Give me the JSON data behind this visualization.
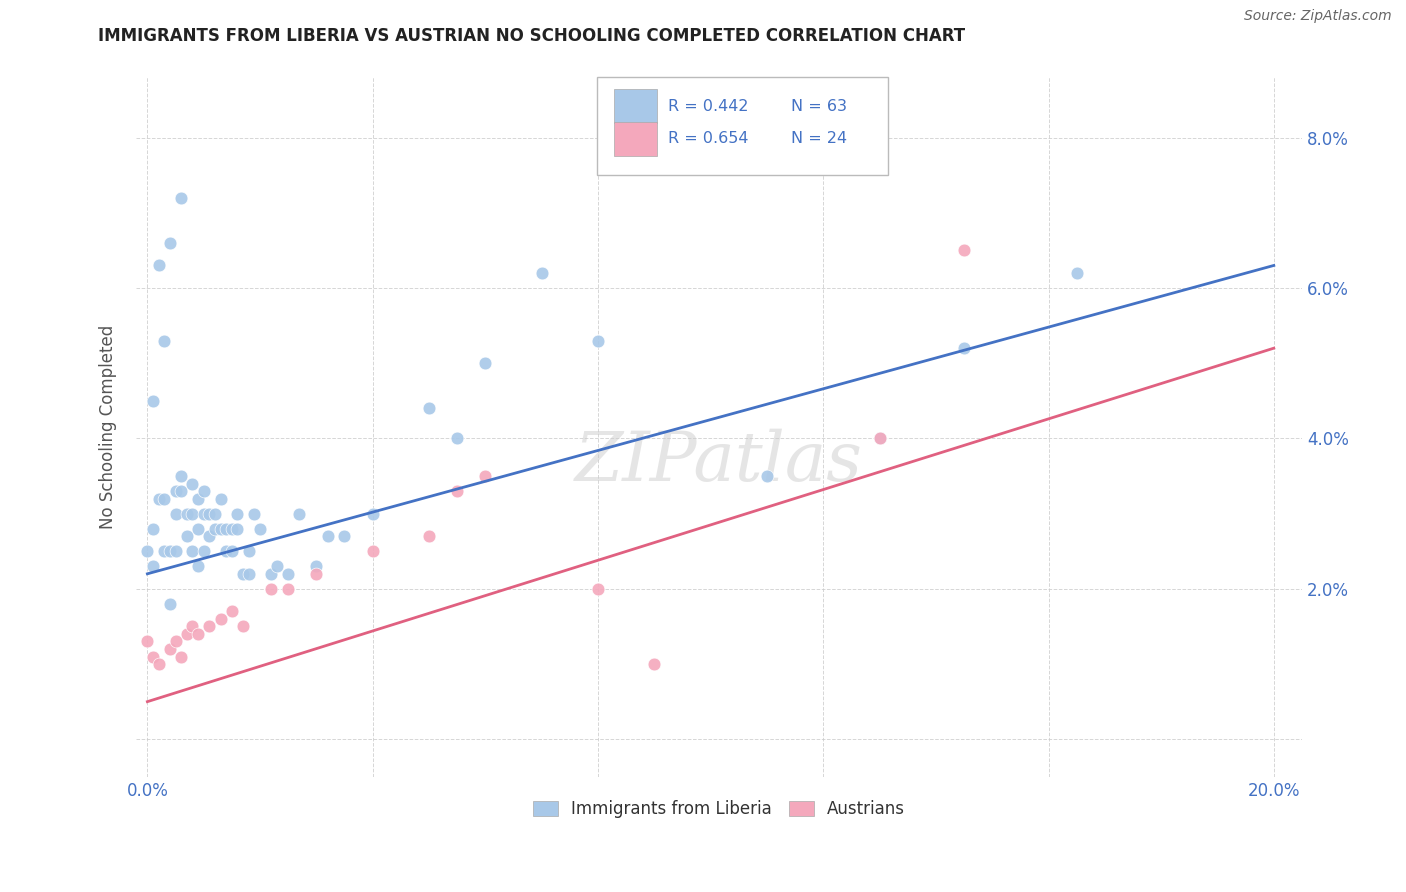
{
  "title": "IMMIGRANTS FROM LIBERIA VS AUSTRIAN NO SCHOOLING COMPLETED CORRELATION CHART",
  "source": "Source: ZipAtlas.com",
  "ylabel": "No Schooling Completed",
  "xlim": [
    -0.002,
    0.205
  ],
  "ylim": [
    -0.005,
    0.088
  ],
  "xtick_vals": [
    0.0,
    0.04,
    0.08,
    0.12,
    0.16,
    0.2
  ],
  "xtick_labels": [
    "0.0%",
    "",
    "",
    "",
    "",
    "20.0%"
  ],
  "ytick_vals": [
    0.0,
    0.02,
    0.04,
    0.06,
    0.08
  ],
  "ytick_labels_right": [
    "",
    "2.0%",
    "4.0%",
    "6.0%",
    "8.0%"
  ],
  "blue_R": "R = 0.442",
  "blue_N": "N = 63",
  "pink_R": "R = 0.654",
  "pink_N": "N = 24",
  "blue_color": "#a8c8e8",
  "pink_color": "#f4a8bc",
  "blue_line_color": "#4472c4",
  "pink_line_color": "#e06080",
  "text_color": "#4472c4",
  "watermark": "ZIPatlas",
  "legend_label_blue": "Immigrants from Liberia",
  "legend_label_pink": "Austrians",
  "blue_line_x0": 0.0,
  "blue_line_x1": 0.2,
  "blue_line_y0": 0.022,
  "blue_line_y1": 0.063,
  "pink_line_x0": 0.0,
  "pink_line_x1": 0.2,
  "pink_line_y0": 0.005,
  "pink_line_y1": 0.052,
  "blue_x": [
    0.0,
    0.001,
    0.001,
    0.002,
    0.003,
    0.003,
    0.004,
    0.004,
    0.005,
    0.005,
    0.005,
    0.006,
    0.006,
    0.007,
    0.007,
    0.008,
    0.008,
    0.008,
    0.009,
    0.009,
    0.009,
    0.01,
    0.01,
    0.01,
    0.011,
    0.011,
    0.012,
    0.012,
    0.013,
    0.013,
    0.014,
    0.014,
    0.015,
    0.015,
    0.016,
    0.016,
    0.017,
    0.018,
    0.018,
    0.019,
    0.02,
    0.022,
    0.023,
    0.025,
    0.027,
    0.03,
    0.032,
    0.035,
    0.04,
    0.05,
    0.055,
    0.06,
    0.07,
    0.08,
    0.11,
    0.13,
    0.145,
    0.165,
    0.001,
    0.002,
    0.003,
    0.004,
    0.006
  ],
  "blue_y": [
    0.025,
    0.028,
    0.023,
    0.032,
    0.025,
    0.032,
    0.018,
    0.025,
    0.033,
    0.03,
    0.025,
    0.033,
    0.035,
    0.03,
    0.027,
    0.034,
    0.03,
    0.025,
    0.032,
    0.028,
    0.023,
    0.033,
    0.03,
    0.025,
    0.03,
    0.027,
    0.03,
    0.028,
    0.032,
    0.028,
    0.028,
    0.025,
    0.028,
    0.025,
    0.03,
    0.028,
    0.022,
    0.022,
    0.025,
    0.03,
    0.028,
    0.022,
    0.023,
    0.022,
    0.03,
    0.023,
    0.027,
    0.027,
    0.03,
    0.044,
    0.04,
    0.05,
    0.062,
    0.053,
    0.035,
    0.04,
    0.052,
    0.062,
    0.045,
    0.063,
    0.053,
    0.066,
    0.072
  ],
  "pink_x": [
    0.0,
    0.001,
    0.002,
    0.004,
    0.005,
    0.006,
    0.007,
    0.008,
    0.009,
    0.011,
    0.013,
    0.015,
    0.017,
    0.022,
    0.025,
    0.03,
    0.04,
    0.05,
    0.055,
    0.06,
    0.08,
    0.09,
    0.13,
    0.145
  ],
  "pink_y": [
    0.013,
    0.011,
    0.01,
    0.012,
    0.013,
    0.011,
    0.014,
    0.015,
    0.014,
    0.015,
    0.016,
    0.017,
    0.015,
    0.02,
    0.02,
    0.022,
    0.025,
    0.027,
    0.033,
    0.035,
    0.02,
    0.01,
    0.04,
    0.065
  ],
  "background_color": "#ffffff",
  "grid_color": "#cccccc"
}
